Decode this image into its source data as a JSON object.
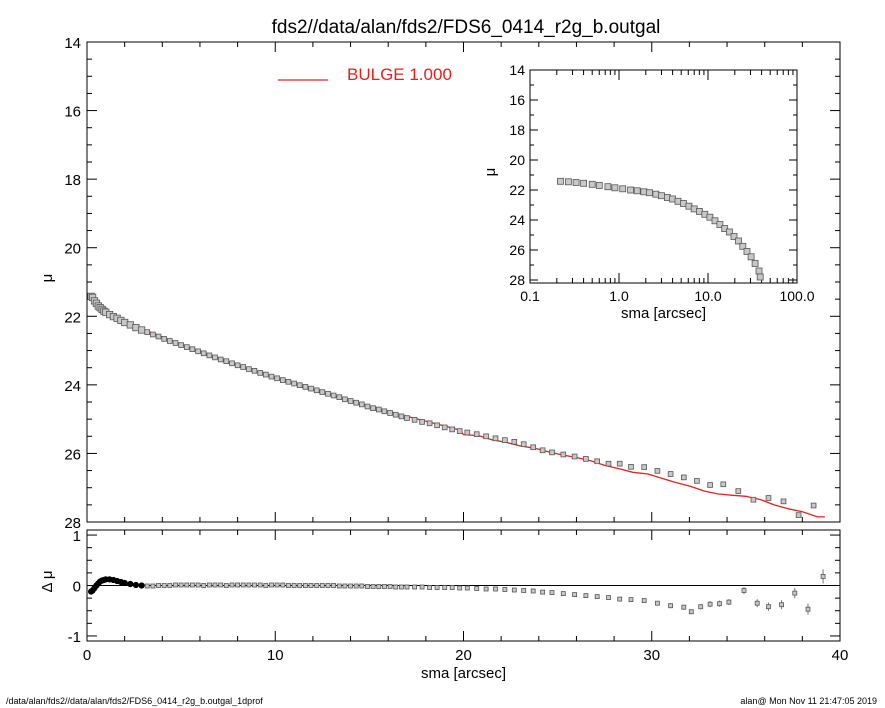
{
  "title": "fds2//data/alan/fds2/FDS6_0414_r2g_b.outgal",
  "footer_left": "/data/alan/fds2//data/alan/fds2/FDS6_0414_r2g_b.outgal_1dprof",
  "footer_right": "alan@  Mon Nov 11 21:47:05 2019",
  "legend": {
    "label": "BULGE  1.000",
    "color": "#e8201c"
  },
  "colors": {
    "model": "#e8201c",
    "points_fill": "#c8c8c8",
    "points_edge": "#555555"
  },
  "chart_data": [
    {
      "id": "main",
      "type": "scatter",
      "xlabel": "",
      "ylabel": "μ",
      "xlim": [
        0,
        40
      ],
      "ylim": [
        28,
        14
      ],
      "y_inverted": true,
      "xticks": [
        0,
        10,
        20,
        30,
        40
      ],
      "yticks": [
        14,
        16,
        18,
        20,
        22,
        24,
        26,
        28
      ],
      "xtick_labels_shown": false,
      "series": [
        {
          "name": "",
          "kind": "points",
          "x": [
            0.22,
            0.3,
            0.4,
            0.5,
            0.6,
            0.7,
            0.8,
            0.9,
            1.0,
            1.2,
            1.4,
            1.6,
            1.8,
            2.0,
            2.3,
            2.6,
            2.9,
            3.2,
            3.5,
            3.8,
            4.1,
            4.4,
            4.7,
            5.0,
            5.3,
            5.6,
            5.9,
            6.2,
            6.5,
            6.8,
            7.1,
            7.4,
            7.7,
            8.0,
            8.3,
            8.6,
            8.9,
            9.2,
            9.5,
            9.8,
            10.1,
            10.4,
            10.7,
            11.0,
            11.3,
            11.6,
            11.9,
            12.2,
            12.5,
            12.8,
            13.1,
            13.4,
            13.7,
            14.0,
            14.3,
            14.6,
            14.9,
            15.2,
            15.5,
            15.8,
            16.1,
            16.4,
            16.7,
            17.0,
            17.4,
            17.8,
            18.2,
            18.6,
            19.0,
            19.4,
            19.8,
            20.2,
            20.7,
            21.2,
            21.7,
            22.2,
            22.7,
            23.2,
            23.7,
            24.2,
            24.7,
            25.3,
            25.9,
            26.5,
            27.1,
            27.7,
            28.3,
            28.9,
            29.6,
            30.3,
            31.0,
            31.7,
            32.4,
            33.1,
            33.8,
            34.6,
            35.4,
            36.2,
            37.0,
            37.8,
            38.6
          ],
          "y": [
            21.42,
            21.45,
            21.55,
            21.62,
            21.7,
            21.75,
            21.8,
            21.85,
            21.88,
            21.95,
            22.01,
            22.06,
            22.12,
            22.18,
            22.25,
            22.33,
            22.4,
            22.46,
            22.53,
            22.59,
            22.66,
            22.72,
            22.78,
            22.84,
            22.9,
            22.96,
            23.02,
            23.08,
            23.14,
            23.2,
            23.26,
            23.31,
            23.37,
            23.43,
            23.48,
            23.54,
            23.59,
            23.65,
            23.7,
            23.76,
            23.81,
            23.86,
            23.91,
            23.96,
            24.01,
            24.06,
            24.11,
            24.16,
            24.21,
            24.26,
            24.31,
            24.36,
            24.42,
            24.47,
            24.52,
            24.57,
            24.63,
            24.68,
            24.72,
            24.77,
            24.82,
            24.87,
            24.92,
            24.97,
            25.02,
            25.08,
            25.12,
            25.18,
            25.24,
            25.3,
            25.35,
            25.39,
            25.44,
            25.5,
            25.56,
            25.61,
            25.66,
            25.73,
            25.82,
            25.91,
            25.97,
            26.03,
            26.09,
            26.16,
            26.23,
            26.3,
            26.3,
            26.39,
            26.4,
            26.51,
            26.6,
            26.7,
            26.8,
            26.92,
            26.9,
            27.1,
            27.35,
            27.3,
            27.4,
            27.8,
            27.52
          ]
        },
        {
          "name": "BULGE  1.000",
          "kind": "line",
          "x": [
            0.22,
            0.5,
            1.0,
            1.5,
            2.0,
            3.0,
            4.0,
            5.0,
            6.0,
            7.0,
            8.0,
            9.0,
            10.0,
            11.0,
            12.0,
            13.0,
            14.0,
            15.0,
            16.0,
            17.0,
            18.0,
            19.0,
            19.8,
            20.0,
            20.8,
            21.5,
            22.3,
            23.0,
            23.8,
            24.5,
            25.3,
            26.0,
            26.8,
            27.5,
            28.3,
            29.0,
            29.8,
            30.5,
            31.3,
            32.0,
            32.8,
            33.5,
            34.3,
            35.0,
            35.8,
            36.5,
            37.3,
            38.0,
            38.8,
            39.2
          ],
          "y": [
            21.52,
            21.68,
            21.9,
            22.03,
            22.14,
            22.38,
            22.6,
            22.82,
            23.03,
            23.24,
            23.44,
            23.62,
            23.8,
            23.98,
            24.15,
            24.31,
            24.47,
            24.62,
            24.77,
            24.92,
            25.06,
            25.2,
            25.32,
            25.45,
            25.48,
            25.6,
            25.68,
            25.78,
            25.85,
            25.95,
            26.05,
            26.12,
            26.22,
            26.35,
            26.45,
            26.55,
            26.6,
            26.72,
            26.85,
            26.95,
            27.1,
            27.18,
            27.22,
            27.25,
            27.35,
            27.5,
            27.62,
            27.7,
            27.85,
            27.85
          ]
        }
      ]
    },
    {
      "id": "inset",
      "type": "scatter",
      "xlabel": "sma [arcsec]",
      "ylabel": "μ",
      "x_scale": "log",
      "xlim": [
        0.1,
        100
      ],
      "ylim": [
        28.2,
        14
      ],
      "xticks": [
        0.1,
        1.0,
        10.0,
        100.0
      ],
      "xtick_labels": [
        "0.1",
        "1.0",
        "10.0",
        "100.0"
      ],
      "yticks": [
        14,
        16,
        18,
        20,
        22,
        24,
        26,
        28
      ],
      "series": [
        {
          "name": "",
          "kind": "points",
          "x": [
            0.22,
            0.27,
            0.33,
            0.4,
            0.5,
            0.6,
            0.75,
            0.9,
            1.1,
            1.35,
            1.6,
            1.9,
            2.2,
            2.6,
            3.0,
            3.5,
            4.0,
            4.6,
            5.3,
            6.1,
            7.0,
            8.0,
            9.2,
            10.5,
            12.0,
            13.6,
            15.4,
            17.4,
            19.6,
            22.0,
            24.6,
            27.4,
            30.5,
            33.8,
            37.4,
            38.6
          ],
          "y": [
            21.42,
            21.45,
            21.5,
            21.55,
            21.62,
            21.7,
            21.78,
            21.85,
            21.92,
            22.0,
            22.05,
            22.12,
            22.18,
            22.28,
            22.38,
            22.5,
            22.6,
            22.75,
            22.9,
            23.08,
            23.26,
            23.43,
            23.62,
            23.81,
            24.05,
            24.3,
            24.57,
            24.8,
            25.1,
            25.4,
            25.75,
            26.1,
            26.45,
            26.9,
            27.4,
            27.8
          ]
        }
      ]
    },
    {
      "id": "residual",
      "type": "scatter",
      "xlabel": "sma [arcsec]",
      "ylabel": "Δ μ",
      "xlim": [
        0,
        40
      ],
      "ylim": [
        -1.1,
        1.1
      ],
      "xticks": [
        0,
        10,
        20,
        30,
        40
      ],
      "xtick_labels": [
        "0",
        "10",
        "20",
        "30",
        "40"
      ],
      "yticks": [
        -1,
        0,
        1
      ],
      "ytick_labels": [
        "-1",
        "0",
        "1"
      ],
      "series": [
        {
          "name": "",
          "kind": "points",
          "x": [
            0.22,
            0.3,
            0.4,
            0.5,
            0.6,
            0.7,
            0.8,
            0.9,
            1.0,
            1.2,
            1.4,
            1.6,
            1.8,
            2.0,
            2.3,
            2.6,
            2.9,
            3.2,
            3.5,
            3.8,
            4.1,
            4.4,
            4.7,
            5.0,
            5.3,
            5.6,
            5.9,
            6.2,
            6.5,
            6.8,
            7.1,
            7.4,
            7.7,
            8.0,
            8.3,
            8.6,
            8.9,
            9.2,
            9.5,
            9.8,
            10.1,
            10.4,
            10.7,
            11.0,
            11.3,
            11.6,
            11.9,
            12.2,
            12.5,
            12.8,
            13.1,
            13.4,
            13.7,
            14.0,
            14.3,
            14.6,
            14.9,
            15.2,
            15.5,
            15.8,
            16.1,
            16.4,
            16.7,
            17.0,
            17.4,
            17.8,
            18.2,
            18.6,
            19.0,
            19.4,
            19.8,
            20.2,
            20.7,
            21.2,
            21.7,
            22.2,
            22.7,
            23.2,
            23.7,
            24.2,
            24.7,
            25.3,
            25.9,
            26.5,
            27.1,
            27.7,
            28.3,
            28.9,
            29.6,
            30.3,
            31.0,
            31.7,
            32.1,
            32.6,
            33.1,
            33.6,
            34.1,
            34.9,
            35.6,
            36.2,
            36.9,
            37.6,
            38.3,
            39.1
          ],
          "y": [
            -0.12,
            -0.1,
            -0.05,
            0.0,
            0.04,
            0.08,
            0.1,
            0.11,
            0.12,
            0.12,
            0.11,
            0.09,
            0.07,
            0.05,
            0.03,
            0.01,
            0.0,
            -0.01,
            -0.01,
            0.0,
            0.0,
            0.0,
            0.01,
            0.01,
            0.01,
            0.01,
            0.01,
            0.0,
            0.01,
            0.01,
            0.01,
            0.0,
            0.01,
            0.01,
            0.01,
            0.01,
            0.01,
            0.01,
            0.0,
            0.01,
            0.01,
            0.01,
            0.0,
            0.0,
            0.0,
            0.0,
            0.0,
            0.0,
            0.0,
            0.0,
            0.0,
            -0.01,
            -0.01,
            -0.01,
            -0.01,
            -0.01,
            -0.02,
            -0.02,
            -0.02,
            -0.02,
            -0.02,
            -0.03,
            -0.03,
            -0.03,
            -0.03,
            -0.03,
            -0.04,
            -0.04,
            -0.04,
            -0.04,
            -0.05,
            -0.05,
            -0.06,
            -0.07,
            -0.07,
            -0.08,
            -0.09,
            -0.1,
            -0.11,
            -0.13,
            -0.14,
            -0.16,
            -0.18,
            -0.2,
            -0.22,
            -0.24,
            -0.27,
            -0.28,
            -0.3,
            -0.35,
            -0.4,
            -0.43,
            -0.52,
            -0.42,
            -0.37,
            -0.36,
            -0.33,
            -0.1,
            -0.35,
            -0.42,
            -0.38,
            -0.15,
            -0.47,
            0.18
          ],
          "err": [
            0.03,
            0.03,
            0.03,
            0.03,
            0.03,
            0.03,
            0.03,
            0.03,
            0.03,
            0.03,
            0.03,
            0.03,
            0.03,
            0.03,
            0.03,
            0.03,
            0.03,
            0.03,
            0.03,
            0.03,
            0.03,
            0.03,
            0.03,
            0.03,
            0.03,
            0.03,
            0.03,
            0.03,
            0.03,
            0.03,
            0.03,
            0.03,
            0.03,
            0.03,
            0.03,
            0.03,
            0.03,
            0.03,
            0.03,
            0.03,
            0.03,
            0.03,
            0.03,
            0.03,
            0.03,
            0.03,
            0.03,
            0.03,
            0.03,
            0.03,
            0.03,
            0.03,
            0.03,
            0.03,
            0.03,
            0.03,
            0.03,
            0.03,
            0.03,
            0.03,
            0.03,
            0.03,
            0.03,
            0.03,
            0.03,
            0.03,
            0.03,
            0.03,
            0.03,
            0.03,
            0.03,
            0.03,
            0.03,
            0.03,
            0.03,
            0.03,
            0.03,
            0.03,
            0.03,
            0.03,
            0.03,
            0.03,
            0.03,
            0.03,
            0.03,
            0.03,
            0.03,
            0.03,
            0.03,
            0.03,
            0.05,
            0.05,
            0.05,
            0.05,
            0.06,
            0.06,
            0.06,
            0.07,
            0.08,
            0.08,
            0.09,
            0.1,
            0.11,
            0.14
          ]
        }
      ]
    }
  ]
}
